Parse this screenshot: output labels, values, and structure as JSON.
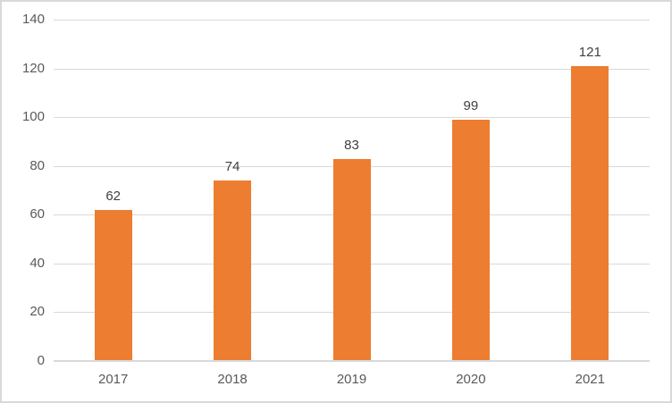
{
  "chart_data": {
    "type": "bar",
    "title": "",
    "xlabel": "",
    "ylabel": "",
    "categories": [
      "2017",
      "2018",
      "2019",
      "2020",
      "2021"
    ],
    "series": [
      {
        "name": "",
        "values": [
          62,
          74,
          83,
          99,
          121
        ]
      }
    ],
    "data_labels": [
      "62",
      "74",
      "83",
      "99",
      "121"
    ],
    "ylim": [
      0,
      140
    ],
    "yticks": [
      0,
      20,
      40,
      60,
      80,
      100,
      120,
      140
    ],
    "ytick_labels": [
      "0",
      "20",
      "40",
      "60",
      "80",
      "100",
      "120",
      "140"
    ],
    "grid": true,
    "legend": "none",
    "colors": {
      "bar_fill": "#ed7d31",
      "gridline": "#d9d9d9",
      "axis_line": "#d9d9d9",
      "tick_label": "#595959",
      "data_label": "#404040",
      "chart_border": "#d9d9d9",
      "background": "#ffffff"
    }
  }
}
